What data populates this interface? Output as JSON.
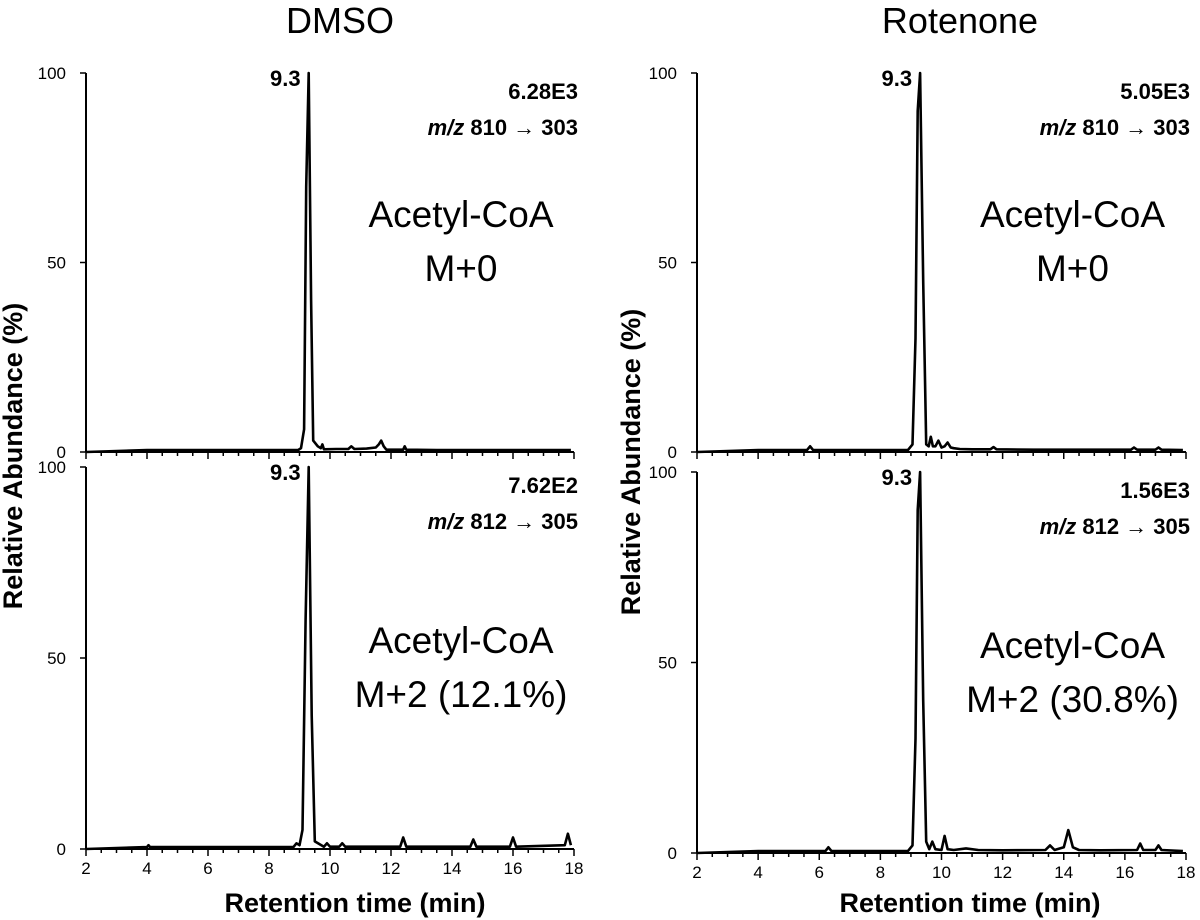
{
  "columns": {
    "left_title": "DMSO",
    "right_title": "Rotenone"
  },
  "axis_labels": {
    "ylabel": "Relative Abundance (%)",
    "xlabel": "Retention time (min)"
  },
  "chart_data": [
    {
      "type": "line",
      "panel": "DMSO top",
      "title": "DMSO",
      "xlabel": "Retention time (min)",
      "ylabel": "Relative Abundance (%)",
      "xlim": [
        2,
        18
      ],
      "ylim": [
        0,
        100
      ],
      "yticks": [
        "100",
        "50",
        "0"
      ],
      "xticks": [],
      "peak_label": "9.3",
      "intensity": "6.28E3",
      "mz_prefix": "m/z",
      "mz_transition": "810 → 303",
      "compound": "Acetyl-CoA",
      "isotope": "M+0",
      "x": [
        2,
        4,
        8.95,
        9.05,
        9.15,
        9.22,
        9.3,
        9.38,
        9.45,
        9.6,
        9.7,
        9.75,
        9.8,
        10.2,
        10.6,
        10.7,
        10.8,
        11.2,
        11.5,
        11.6,
        11.68,
        11.76,
        11.85,
        12.4,
        12.45,
        12.5,
        13.5,
        14.5,
        15.5,
        16.5,
        17.6,
        17.9
      ],
      "y": [
        0,
        0.5,
        0.5,
        1,
        6,
        70,
        100,
        40,
        3,
        1.5,
        1,
        2,
        0.7,
        0.8,
        0.8,
        1.5,
        0.8,
        0.9,
        1.2,
        2,
        3,
        1.5,
        0.6,
        0.6,
        1.5,
        0.6,
        0.5,
        0.5,
        0.5,
        0.5,
        0.5,
        0.5
      ]
    },
    {
      "type": "line",
      "panel": "DMSO bottom",
      "xlabel": "Retention time (min)",
      "ylabel": "Relative Abundance (%)",
      "xlim": [
        2,
        18
      ],
      "ylim": [
        0,
        100
      ],
      "yticks": [
        "100",
        "50",
        "0"
      ],
      "xticks": [
        "2",
        "4",
        "6",
        "8",
        "10",
        "12",
        "14",
        "16",
        "18"
      ],
      "peak_label": "9.3",
      "intensity": "7.62E2",
      "mz_prefix": "m/z",
      "mz_transition": "812 → 305",
      "compound": "Acetyl-CoA",
      "isotope": "M+2 (12.1%)",
      "x": [
        2,
        4,
        4.05,
        4.1,
        8.8,
        8.9,
        9.0,
        9.1,
        9.2,
        9.3,
        9.4,
        9.5,
        9.8,
        9.9,
        10.0,
        10.3,
        10.4,
        10.5,
        12.3,
        12.4,
        12.5,
        14.6,
        14.7,
        14.8,
        15.9,
        16.0,
        16.1,
        17.7,
        17.8,
        17.9
      ],
      "y": [
        0,
        0.5,
        1,
        0.5,
        0.5,
        1.5,
        1,
        5,
        60,
        100,
        35,
        2,
        0.6,
        1.5,
        0.6,
        0.6,
        1.5,
        0.6,
        0.6,
        3,
        0.6,
        0.6,
        2.5,
        0.6,
        0.6,
        3,
        0.6,
        1,
        4,
        1
      ]
    },
    {
      "type": "line",
      "panel": "Rotenone top",
      "title": "Rotenone",
      "xlabel": "Retention time (min)",
      "ylabel": "Relative Abundance (%)",
      "xlim": [
        2,
        18
      ],
      "ylim": [
        0,
        100
      ],
      "yticks": [
        "100",
        "50",
        "0"
      ],
      "xticks": [],
      "peak_label": "9.3",
      "intensity": "5.05E3",
      "mz_prefix": "m/z",
      "mz_transition": "810 → 303",
      "compound": "Acetyl-CoA",
      "isotope": "M+0",
      "x": [
        2,
        4,
        5.6,
        5.7,
        5.8,
        8.9,
        9.05,
        9.15,
        9.22,
        9.3,
        9.4,
        9.5,
        9.58,
        9.65,
        9.72,
        9.8,
        9.9,
        10.0,
        10.1,
        10.2,
        10.3,
        10.4,
        10.6,
        11.0,
        11.6,
        11.7,
        11.8,
        13,
        14,
        16.2,
        16.3,
        16.4,
        17.0,
        17.1,
        17.2,
        17.9
      ],
      "y": [
        0,
        0.5,
        0.5,
        1.5,
        0.5,
        0.5,
        2,
        30,
        90,
        100,
        45,
        2,
        1.5,
        4,
        1.5,
        1.5,
        3,
        1.2,
        1.5,
        2.5,
        1.2,
        1,
        0.8,
        0.7,
        0.7,
        1.3,
        0.7,
        0.6,
        0.6,
        0.6,
        1.2,
        0.6,
        0.6,
        1.2,
        0.6,
        0.5
      ]
    },
    {
      "type": "line",
      "panel": "Rotenone bottom",
      "xlabel": "Retention time (min)",
      "ylabel": "Relative Abundance (%)",
      "xlim": [
        2,
        18
      ],
      "ylim": [
        0,
        100
      ],
      "yticks": [
        "100",
        "50",
        "0"
      ],
      "xticks": [
        "2",
        "4",
        "6",
        "8",
        "10",
        "12",
        "14",
        "16",
        "18"
      ],
      "peak_label": "9.3",
      "intensity": "1.56E3",
      "mz_prefix": "m/z",
      "mz_transition": "812 → 305",
      "compound": "Acetyl-CoA",
      "isotope": "M+2 (30.8%)",
      "x": [
        2,
        4,
        6.2,
        6.3,
        6.4,
        8.9,
        9.05,
        9.15,
        9.22,
        9.3,
        9.4,
        9.5,
        9.6,
        9.7,
        9.8,
        10.0,
        10.1,
        10.2,
        10.4,
        10.8,
        11.2,
        12,
        13.4,
        13.55,
        13.7,
        14.0,
        14.15,
        14.3,
        14.5,
        15.2,
        16.4,
        16.5,
        16.6,
        17.0,
        17.1,
        17.2,
        17.9
      ],
      "y": [
        0,
        0.5,
        0.5,
        1.5,
        0.5,
        0.5,
        2,
        30,
        90,
        100,
        40,
        3,
        1,
        3,
        1,
        0.8,
        4.5,
        1,
        0.8,
        1.2,
        0.8,
        0.7,
        0.8,
        2,
        0.8,
        1.5,
        6,
        1.5,
        0.8,
        0.7,
        0.8,
        2.5,
        0.8,
        0.8,
        2,
        0.8,
        0.5
      ]
    }
  ]
}
